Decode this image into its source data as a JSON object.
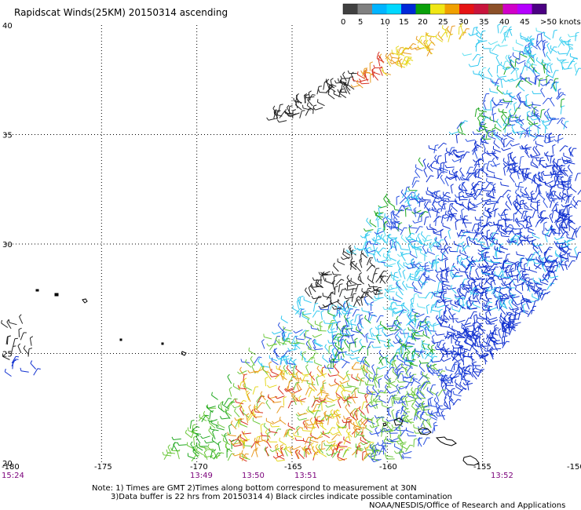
{
  "title": "Rapidscat Winds(25KM) 20150314 ascending",
  "legend": {
    "labels": [
      "0",
      "5",
      "10",
      "15",
      "20",
      "25",
      "30",
      "35",
      "40",
      "45",
      ">50 knots"
    ],
    "colors": [
      "#404040",
      "#808080",
      "#00b4ff",
      "#00d8ff",
      "#0028d8",
      "#0aa00a",
      "#f0e614",
      "#f0a000",
      "#e61414",
      "#c8143c",
      "#8c5028",
      "#d000c8",
      "#b400ff",
      "#4b0082"
    ]
  },
  "axes": {
    "x_ticks": [
      "-180",
      "-175",
      "-170",
      "-165",
      "-160",
      "-155",
      "-150"
    ],
    "y_ticks": [
      "20",
      "25",
      "30",
      "35",
      "40"
    ],
    "pass_times": [
      "15:24",
      "13:49",
      "13:50",
      "13:51",
      "13:52"
    ]
  },
  "notes": {
    "line1": "Note: 1) Times are GMT 2)Times along bottom correspond to measurement at 30N",
    "line2": "3)Data buffer is 22 hrs from 20150314 4) Black circles indicate possible contamination",
    "line3": "NOAA/NESDIS/Office of Research and Applications"
  },
  "map_extent": {
    "lon": [
      -180,
      -150
    ],
    "lat": [
      20,
      40
    ]
  },
  "colors": {
    "grid": "#000000",
    "pass_time_text": "#7a007a",
    "land": "#000000"
  }
}
